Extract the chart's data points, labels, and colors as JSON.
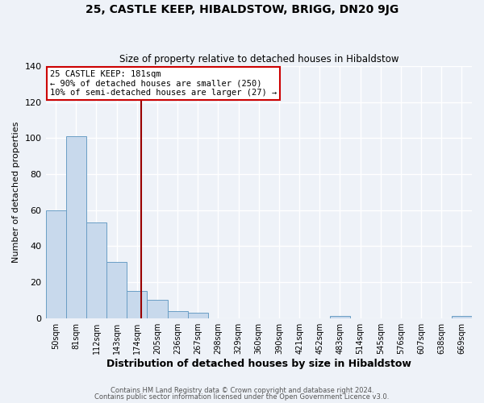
{
  "title": "25, CASTLE KEEP, HIBALDSTOW, BRIGG, DN20 9JG",
  "subtitle": "Size of property relative to detached houses in Hibaldstow",
  "xlabel": "Distribution of detached houses by size in Hibaldstow",
  "ylabel": "Number of detached properties",
  "bin_labels": [
    "50sqm",
    "81sqm",
    "112sqm",
    "143sqm",
    "174sqm",
    "205sqm",
    "236sqm",
    "267sqm",
    "298sqm",
    "329sqm",
    "360sqm",
    "390sqm",
    "421sqm",
    "452sqm",
    "483sqm",
    "514sqm",
    "545sqm",
    "576sqm",
    "607sqm",
    "638sqm",
    "669sqm"
  ],
  "bin_values": [
    60,
    101,
    53,
    31,
    15,
    10,
    4,
    3,
    0,
    0,
    0,
    0,
    0,
    0,
    1,
    0,
    0,
    0,
    0,
    0,
    1
  ],
  "bar_color": "#c8d9ec",
  "bar_edge_color": "#6a9ec5",
  "vline_color": "#990000",
  "annotation_line1": "25 CASTLE KEEP: 181sqm",
  "annotation_line2": "← 90% of detached houses are smaller (250)",
  "annotation_line3": "10% of semi-detached houses are larger (27) →",
  "annotation_box_color": "#ffffff",
  "annotation_box_edge_color": "#cc0000",
  "ylim": [
    0,
    140
  ],
  "yticks": [
    0,
    20,
    40,
    60,
    80,
    100,
    120,
    140
  ],
  "footer_line1": "Contains HM Land Registry data © Crown copyright and database right 2024.",
  "footer_line2": "Contains public sector information licensed under the Open Government Licence v3.0.",
  "bg_color": "#eef2f8",
  "grid_color": "#ffffff",
  "title_fontsize": 10,
  "subtitle_fontsize": 8.5,
  "xlabel_fontsize": 9,
  "ylabel_fontsize": 8,
  "tick_fontsize": 7,
  "footer_fontsize": 6
}
